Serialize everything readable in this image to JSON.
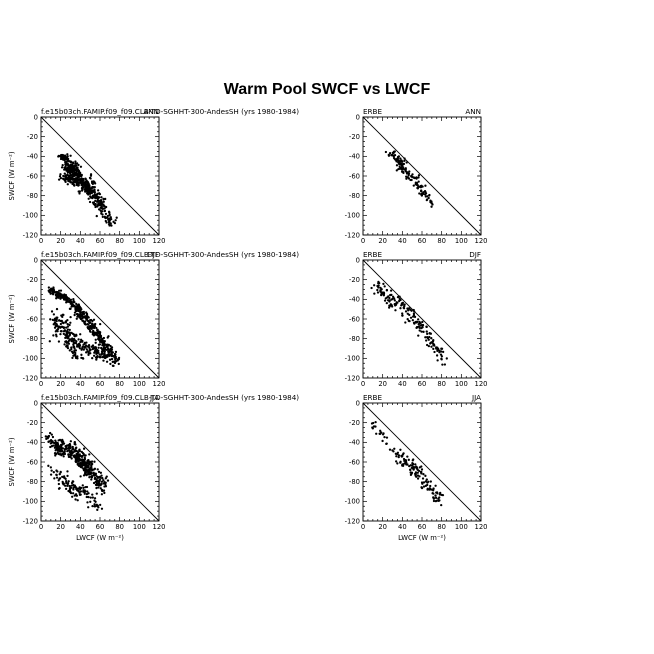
{
  "figure": {
    "title": "Warm Pool SWCF vs LWCF"
  },
  "chart_data": [
    {
      "type": "scatter",
      "panel": "model-ann",
      "label_left": "f.e15b03ch.FAMIP.f09_f09.CLB-TD-SGHHT-300-AndesSH (yrs 1980-1984)",
      "label_right": "ANN",
      "xlabel": "",
      "ylabel": "SWCF (W m⁻²)",
      "xlim": [
        0,
        120
      ],
      "ylim": [
        -120,
        0
      ],
      "xticks": [
        0,
        20,
        40,
        60,
        80,
        100,
        120
      ],
      "yticks": [
        0,
        -20,
        -40,
        -60,
        -80,
        -100,
        -120
      ],
      "cloud": [
        {
          "x": [
            20,
            26
          ],
          "y": [
            -40,
            -42
          ],
          "n": 40,
          "sx": 4,
          "sy": 2
        },
        {
          "x": [
            26,
            38
          ],
          "y": [
            -48,
            -58
          ],
          "n": 140,
          "sx": 5,
          "sy": 5
        },
        {
          "x": [
            30,
            50
          ],
          "y": [
            -58,
            -72
          ],
          "n": 160,
          "sx": 6,
          "sy": 6
        },
        {
          "x": [
            45,
            62
          ],
          "y": [
            -70,
            -88
          ],
          "n": 120,
          "sx": 5,
          "sy": 6
        },
        {
          "x": [
            58,
            72
          ],
          "y": [
            -88,
            -110
          ],
          "n": 60,
          "sx": 4,
          "sy": 5
        },
        {
          "x": [
            22,
            34
          ],
          "y": [
            -60,
            -68
          ],
          "n": 40,
          "sx": 4,
          "sy": 3
        }
      ]
    },
    {
      "type": "scatter",
      "panel": "obs-ann",
      "label_left": "ERBE",
      "label_right": "ANN",
      "xlabel": "",
      "ylabel": "",
      "xlim": [
        0,
        120
      ],
      "ylim": [
        -120,
        0
      ],
      "xticks": [
        0,
        20,
        40,
        60,
        80,
        100,
        120
      ],
      "yticks": [
        0,
        -20,
        -40,
        -60,
        -80,
        -100,
        -120
      ],
      "cloud": [
        {
          "x": [
            25,
            40
          ],
          "y": [
            -34,
            -48
          ],
          "n": 40,
          "sx": 3,
          "sy": 4
        },
        {
          "x": [
            38,
            58
          ],
          "y": [
            -48,
            -70
          ],
          "n": 60,
          "sx": 4,
          "sy": 5
        },
        {
          "x": [
            55,
            72
          ],
          "y": [
            -68,
            -90
          ],
          "n": 40,
          "sx": 3,
          "sy": 4
        }
      ]
    },
    {
      "type": "scatter",
      "panel": "model-djf",
      "label_left": "f.e15b03ch.FAMIP.f09_f09.CLB-TD-SGHHT-300-AndesSH (yrs 1980-1984)",
      "label_right": "DJF",
      "xlabel": "",
      "ylabel": "SWCF (W m⁻²)",
      "xlim": [
        0,
        120
      ],
      "ylim": [
        -120,
        0
      ],
      "xticks": [
        0,
        20,
        40,
        60,
        80,
        100,
        120
      ],
      "yticks": [
        0,
        -20,
        -40,
        -60,
        -80,
        -100,
        -120
      ],
      "cloud": [
        {
          "x": [
            8,
            30
          ],
          "y": [
            -30,
            -42
          ],
          "n": 120,
          "sx": 3,
          "sy": 3
        },
        {
          "x": [
            30,
            55
          ],
          "y": [
            -42,
            -72
          ],
          "n": 160,
          "sx": 4,
          "sy": 4
        },
        {
          "x": [
            55,
            78
          ],
          "y": [
            -72,
            -105
          ],
          "n": 120,
          "sx": 4,
          "sy": 5
        },
        {
          "x": [
            14,
            40
          ],
          "y": [
            -60,
            -95
          ],
          "n": 160,
          "sx": 7,
          "sy": 10
        },
        {
          "x": [
            40,
            70
          ],
          "y": [
            -85,
            -100
          ],
          "n": 100,
          "sx": 6,
          "sy": 5
        }
      ]
    },
    {
      "type": "scatter",
      "panel": "obs-djf",
      "label_left": "ERBE",
      "label_right": "DJF",
      "xlabel": "",
      "ylabel": "",
      "xlim": [
        0,
        120
      ],
      "ylim": [
        -120,
        0
      ],
      "xticks": [
        0,
        20,
        40,
        60,
        80,
        100,
        120
      ],
      "yticks": [
        0,
        -20,
        -40,
        -60,
        -80,
        -100,
        -120
      ],
      "cloud": [
        {
          "x": [
            10,
            30
          ],
          "y": [
            -22,
            -45
          ],
          "n": 50,
          "sx": 4,
          "sy": 6
        },
        {
          "x": [
            30,
            55
          ],
          "y": [
            -35,
            -65
          ],
          "n": 60,
          "sx": 5,
          "sy": 6
        },
        {
          "x": [
            55,
            85
          ],
          "y": [
            -62,
            -105
          ],
          "n": 70,
          "sx": 4,
          "sy": 6
        }
      ]
    },
    {
      "type": "scatter",
      "panel": "model-jja",
      "label_left": "f.e15b03ch.FAMIP.f09_f09.CLB-TD-SGHHT-300-AndesSH (yrs 1980-1984)",
      "label_right": "JJA",
      "xlabel": "LWCF (W m⁻²)",
      "ylabel": "SWCF (W m⁻²)",
      "xlim": [
        0,
        120
      ],
      "ylim": [
        -120,
        0
      ],
      "xticks": [
        0,
        20,
        40,
        60,
        80,
        100,
        120
      ],
      "yticks": [
        0,
        -20,
        -40,
        -60,
        -80,
        -100,
        -120
      ],
      "cloud": [
        {
          "x": [
            8,
            22
          ],
          "y": [
            -36,
            -52
          ],
          "n": 80,
          "sx": 4,
          "sy": 5
        },
        {
          "x": [
            22,
            50
          ],
          "y": [
            -40,
            -65
          ],
          "n": 160,
          "sx": 6,
          "sy": 5
        },
        {
          "x": [
            40,
            65
          ],
          "y": [
            -60,
            -85
          ],
          "n": 140,
          "sx": 5,
          "sy": 6
        },
        {
          "x": [
            15,
            40
          ],
          "y": [
            -70,
            -95
          ],
          "n": 80,
          "sx": 6,
          "sy": 7
        },
        {
          "x": [
            40,
            60
          ],
          "y": [
            -85,
            -110
          ],
          "n": 40,
          "sx": 5,
          "sy": 5
        }
      ]
    },
    {
      "type": "scatter",
      "panel": "obs-jja",
      "label_left": "ERBE",
      "label_right": "JJA",
      "xlabel": "LWCF (W m⁻²)",
      "ylabel": "",
      "xlim": [
        0,
        120
      ],
      "ylim": [
        -120,
        0
      ],
      "xticks": [
        0,
        20,
        40,
        60,
        80,
        100,
        120
      ],
      "yticks": [
        0,
        -20,
        -40,
        -60,
        -80,
        -100,
        -120
      ],
      "cloud": [
        {
          "x": [
            10,
            25
          ],
          "y": [
            -22,
            -40
          ],
          "n": 20,
          "sx": 2,
          "sy": 4
        },
        {
          "x": [
            30,
            55
          ],
          "y": [
            -50,
            -70
          ],
          "n": 60,
          "sx": 5,
          "sy": 5
        },
        {
          "x": [
            50,
            80
          ],
          "y": [
            -65,
            -100
          ],
          "n": 70,
          "sx": 5,
          "sy": 5
        }
      ]
    }
  ]
}
